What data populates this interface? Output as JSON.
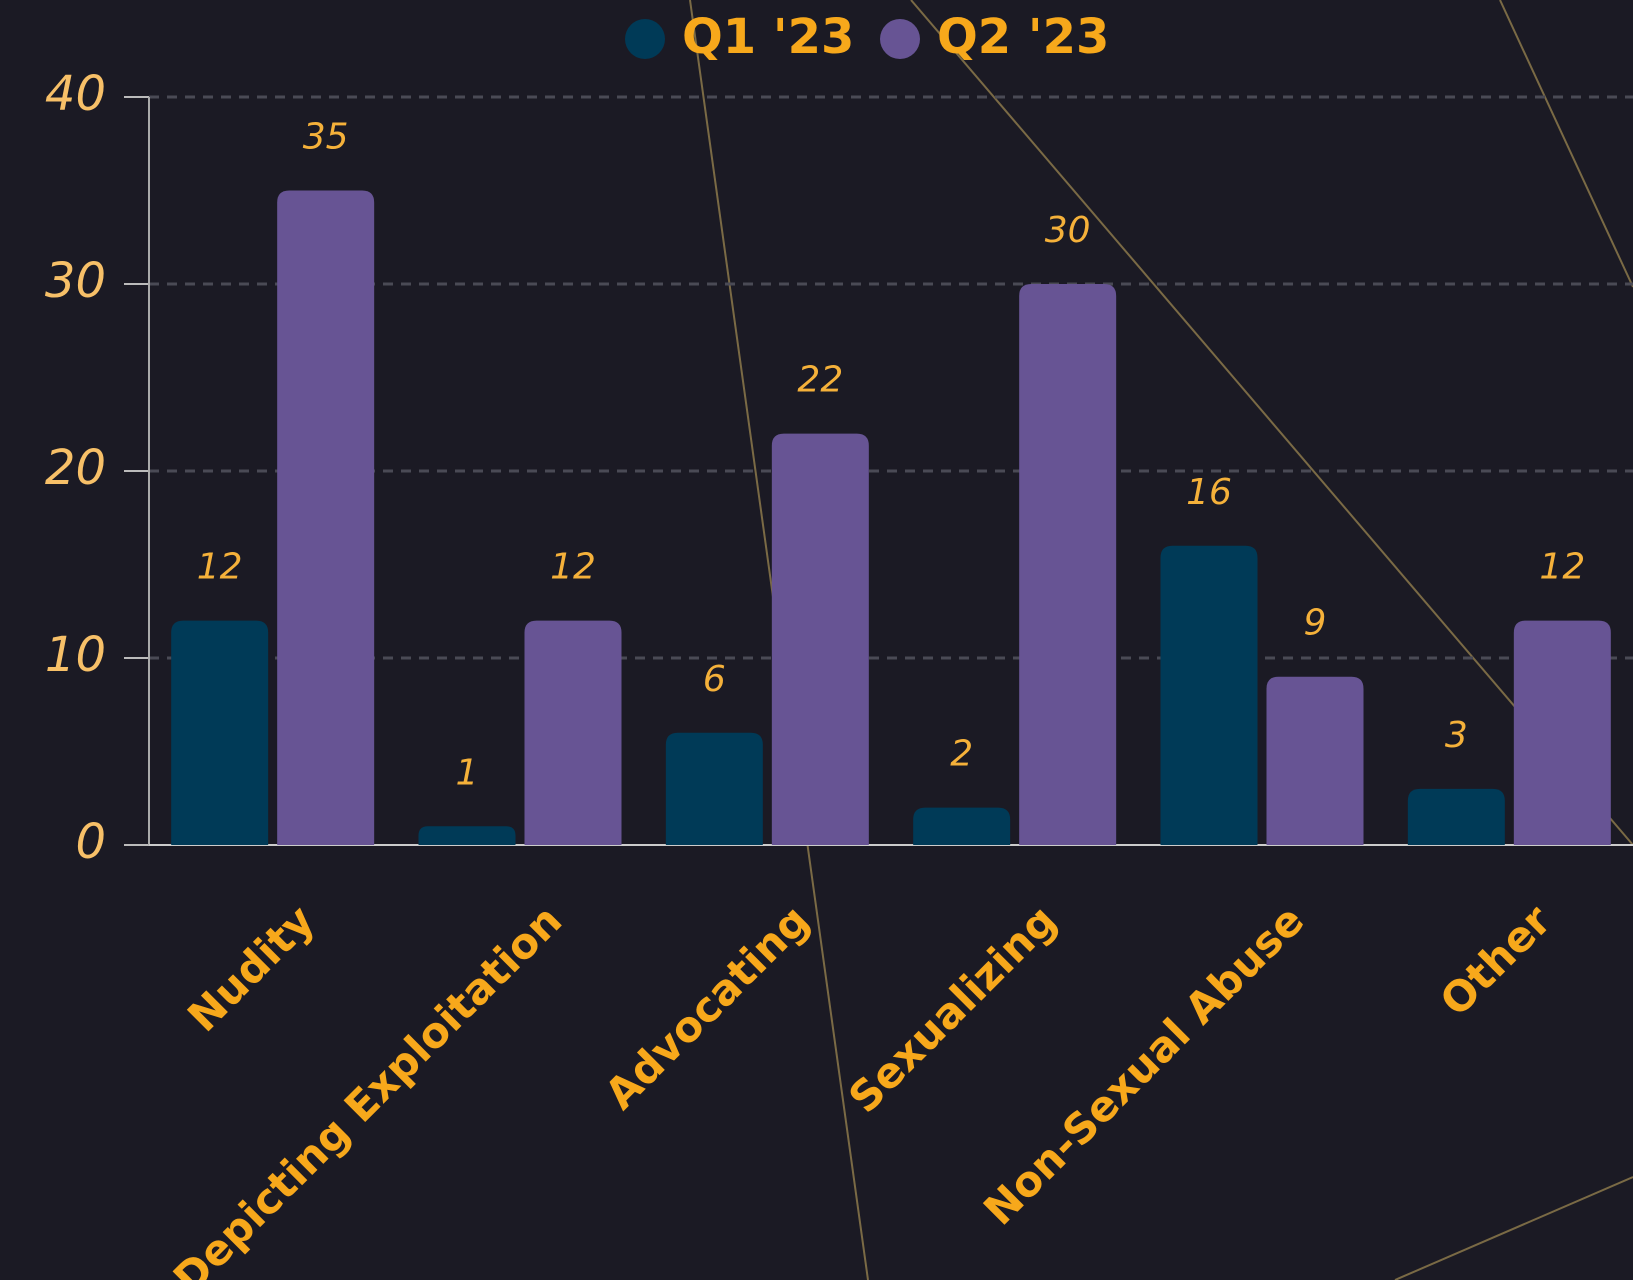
{
  "chart_data": {
    "type": "bar",
    "categories": [
      "Nudity",
      "Depicting Exploitation",
      "Advocating",
      "Sexualizing",
      "Non-Sexual Abuse",
      "Other"
    ],
    "series": [
      {
        "name": "Q1 '23",
        "color": "#003a57",
        "values": [
          12,
          1,
          6,
          2,
          16,
          3
        ]
      },
      {
        "name": "Q2 '23",
        "color": "#675494",
        "values": [
          35,
          12,
          22,
          30,
          9,
          12
        ]
      }
    ],
    "ylim": [
      0,
      40
    ],
    "yticks": [
      0,
      10,
      20,
      30,
      40
    ],
    "grid": true
  }
}
